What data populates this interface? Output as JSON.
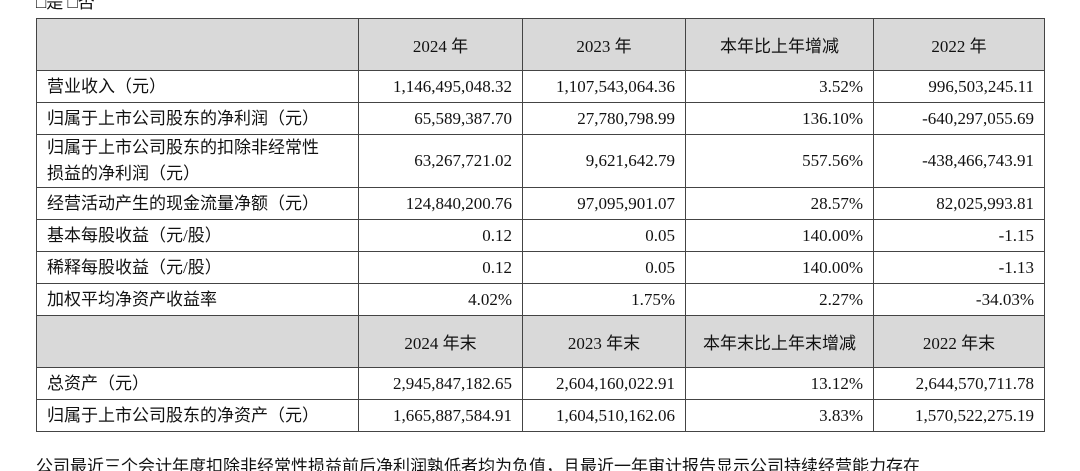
{
  "top_text": "□是 □否",
  "table": {
    "header1": [
      "",
      "2024 年",
      "2023 年",
      "本年比上年增减",
      "2022 年"
    ],
    "rows": [
      [
        "营业收入（元）",
        "1,146,495,048.32",
        "1,107,543,064.36",
        "3.52%",
        "996,503,245.11"
      ],
      [
        "归属于上市公司股东的净利润（元）",
        "65,589,387.70",
        "27,780,798.99",
        "136.10%",
        "-640,297,055.69"
      ],
      [
        "归属于上市公司股东的扣除非经常性损益的净利润（元）",
        "63,267,721.02",
        "9,621,642.79",
        "557.56%",
        "-438,466,743.91"
      ],
      [
        "经营活动产生的现金流量净额（元）",
        "124,840,200.76",
        "97,095,901.07",
        "28.57%",
        "82,025,993.81"
      ],
      [
        "基本每股收益（元/股）",
        "0.12",
        "0.05",
        "140.00%",
        "-1.15"
      ],
      [
        "稀释每股收益（元/股）",
        "0.12",
        "0.05",
        "140.00%",
        "-1.13"
      ],
      [
        "加权平均净资产收益率",
        "4.02%",
        "1.75%",
        "2.27%",
        "-34.03%"
      ]
    ],
    "header2": [
      "",
      "2024 年末",
      "2023 年末",
      "本年末比上年末增减",
      "2022 年末"
    ],
    "rows2": [
      [
        "总资产（元）",
        "2,945,847,182.65",
        "2,604,160,022.91",
        "13.12%",
        "2,644,570,711.78"
      ],
      [
        "归属于上市公司股东的净资产（元）",
        "1,665,887,584.91",
        "1,604,510,162.06",
        "3.83%",
        "1,570,522,275.19"
      ]
    ]
  },
  "bottom_text": "公司最近三个会计年度扣除非经常性损益前后净利润孰低者均为负值，且最近一年审计报告显示公司持续经营能力存在"
}
